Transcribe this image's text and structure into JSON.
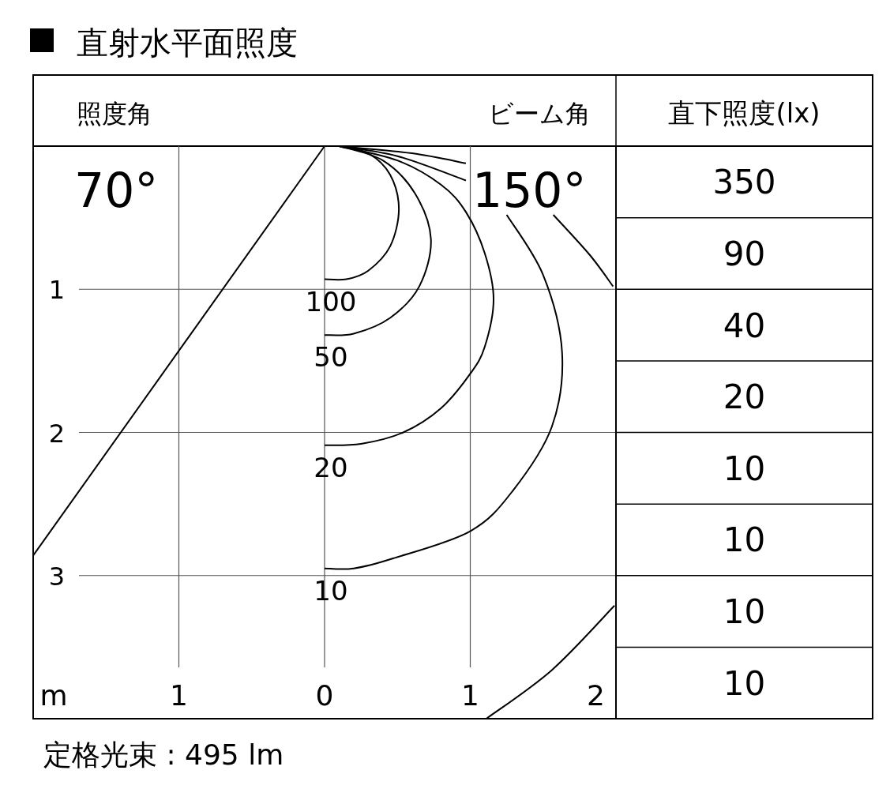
{
  "chart_data": [
    {
      "type": "line",
      "title": "直射水平面照度",
      "xlabel": "m",
      "xlim": [
        -2,
        2
      ],
      "ylim": [
        4,
        0
      ],
      "xticks": [
        {
          "value": -1,
          "label": "1"
        },
        0,
        1,
        2
      ],
      "yticks": [
        1,
        2,
        3
      ],
      "grid": true,
      "annotations": [
        "照度角",
        "ビーム角",
        "70°",
        "150°",
        "定格光束 : 495 lm"
      ],
      "series": [
        {
          "name": "100",
          "color": "#000000",
          "x": [
            0.1,
            0.3,
            0.45,
            0.51,
            0.45,
            0.3,
            0.15,
            0
          ],
          "values": [
            0,
            0.05,
            0.2,
            0.44,
            0.7,
            0.87,
            0.93,
            0.93
          ]
        },
        {
          "name": "50",
          "color": "#000000",
          "x": [
            0.1,
            0.4,
            0.62,
            0.73,
            0.65,
            0.45,
            0.2,
            0
          ],
          "values": [
            0,
            0.1,
            0.33,
            0.65,
            0.98,
            1.2,
            1.31,
            1.32
          ]
        },
        {
          "name": "20",
          "color": "#000000",
          "x": [
            0.1,
            0.5,
            0.8,
            0.97,
            1.1,
            1.16,
            1.1,
            1.0,
            0.8,
            0.54,
            0.25,
            0
          ],
          "values": [
            0,
            0.1,
            0.27,
            0.46,
            0.75,
            1.07,
            1.4,
            1.59,
            1.83,
            2.0,
            2.08,
            2.09
          ]
        },
        {
          "color": "#000000",
          "x": [
            0.1,
            0.5,
            0.97
          ],
          "values": [
            0,
            0.07,
            0.24
          ]
        },
        {
          "name": "10",
          "color": "#000000",
          "x": [
            1.25,
            1.5,
            1.63,
            1.56,
            1.29,
            1.0,
            0.47,
            0.2,
            0
          ],
          "values": [
            0.48,
            0.9,
            1.44,
            1.96,
            2.41,
            2.69,
            2.88,
            2.95,
            2.95
          ]
        },
        {
          "color": "#000000",
          "x": [
            0.1,
            0.6,
            0.97
          ],
          "values": [
            0,
            0.05,
            0.12
          ]
        },
        {
          "color": "#000000",
          "x": [
            1.57,
            1.82,
            1.98
          ],
          "values": [
            0.48,
            0.76,
            0.98
          ]
        },
        {
          "color": "#000000",
          "x": [
            1.99,
            1.56,
            1.11
          ],
          "values": [
            3.21,
            3.66,
            4.0
          ]
        },
        {
          "color": "#000000",
          "x": [
            0,
            -2
          ],
          "values": [
            0,
            2.86
          ]
        }
      ]
    },
    {
      "type": "other",
      "title": "直下照度(lx)",
      "values": [
        350,
        90,
        40,
        20,
        10,
        10,
        10,
        10
      ],
      "data_labels": true
    }
  ]
}
